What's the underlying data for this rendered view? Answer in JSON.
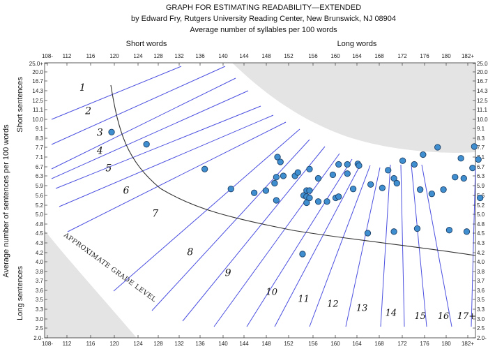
{
  "chart_data": {
    "type": "scatter",
    "title_lines": [
      "GRAPH FOR ESTIMATING READABILITY—EXTENDED",
      "by Edward Fry, Rutgers University Reading Center, New Brunswick, NJ 08904",
      "Average number of syllables per 100 words"
    ],
    "top_labels": {
      "left": "Short words",
      "right": "Long words"
    },
    "ylabel": "Average number of sentences per 100 words",
    "side_labels": {
      "top": "Short sentences",
      "bottom": "Long sentences"
    },
    "x_ticks": [
      "108-",
      "112",
      "116",
      "120",
      "124",
      "128",
      "132",
      "136",
      "140",
      "144",
      "148",
      "152",
      "156",
      "160",
      "164",
      "168",
      "172",
      "176",
      "180",
      "182+"
    ],
    "y_ticks": [
      "25.0+",
      "20.0",
      "16.7",
      "14.3",
      "12.5",
      "11.1",
      "10.0",
      "9.1",
      "8.3",
      "7.7",
      "7.1",
      "6.7",
      "6.3",
      "5.9",
      "5.6",
      "5.2",
      "5.0",
      "4.8",
      "4.5",
      "4.3",
      "4.2",
      "4.0",
      "3.8",
      "3.7",
      "3.6",
      "3.5",
      "3.3",
      "3.0",
      "2.5",
      "2.0-"
    ],
    "xlim": [
      108,
      182
    ],
    "curve_label": "APPROXIMATE GRADE LEVEL",
    "grade_labels": [
      {
        "text": "1",
        "x": 114.5,
        "y": 14.3
      },
      {
        "text": "2",
        "x": 115.5,
        "y": 10.6
      },
      {
        "text": "3",
        "x": 117.5,
        "y": 8.5
      },
      {
        "text": "4",
        "x": 117.5,
        "y": 7.3
      },
      {
        "text": "5",
        "x": 119,
        "y": 6.5
      },
      {
        "text": "6",
        "x": 122,
        "y": 5.65
      },
      {
        "text": "7",
        "x": 127,
        "y": 4.95
      },
      {
        "text": "8",
        "x": 133,
        "y": 4.15
      },
      {
        "text": "9",
        "x": 139.5,
        "y": 3.75
      },
      {
        "text": "10",
        "x": 147,
        "y": 3.55
      },
      {
        "text": "11",
        "x": 152.5,
        "y": 3.45
      },
      {
        "text": "12",
        "x": 157.5,
        "y": 3.35
      },
      {
        "text": "13",
        "x": 162.5,
        "y": 3.25
      },
      {
        "text": "14",
        "x": 167.5,
        "y": 3.1
      },
      {
        "text": "15",
        "x": 172.5,
        "y": 3.0
      },
      {
        "text": "16",
        "x": 176.5,
        "y": 3.0
      },
      {
        "text": "17+",
        "x": 180.5,
        "y": 3.0
      }
    ],
    "points": [
      [
        119.5,
        8.8
      ],
      [
        125.5,
        7.9
      ],
      [
        135.5,
        6.6
      ],
      [
        140,
        5.8
      ],
      [
        144,
        5.68
      ],
      [
        146,
        5.75
      ],
      [
        147.5,
        6.0
      ],
      [
        147.8,
        6.25
      ],
      [
        148,
        7.1
      ],
      [
        148.5,
        6.9
      ],
      [
        149,
        6.3
      ],
      [
        151,
        6.3
      ],
      [
        151.5,
        6.45
      ],
      [
        147.8,
        5.4
      ],
      [
        152.5,
        5.6
      ],
      [
        153,
        5.55
      ],
      [
        153,
        5.75
      ],
      [
        153.5,
        5.75
      ],
      [
        153.5,
        6.6
      ],
      [
        153,
        5.3
      ],
      [
        153.5,
        5.5
      ],
      [
        155,
        6.2
      ],
      [
        155,
        5.35
      ],
      [
        156.5,
        5.35
      ],
      [
        157.5,
        6.35
      ],
      [
        158,
        5.5
      ],
      [
        158.5,
        5.55
      ],
      [
        158.5,
        6.8
      ],
      [
        160,
        6.8
      ],
      [
        160,
        6.4
      ],
      [
        161,
        5.8
      ],
      [
        161.8,
        6.82
      ],
      [
        162,
        6.75
      ],
      [
        163.5,
        4.5
      ],
      [
        164,
        5.95
      ],
      [
        166,
        5.83
      ],
      [
        167,
        6.55
      ],
      [
        168,
        4.55
      ],
      [
        168,
        6.2
      ],
      [
        168.5,
        6.0
      ],
      [
        169.5,
        6.95
      ],
      [
        171.5,
        6.8
      ],
      [
        172,
        4.65
      ],
      [
        172.5,
        5.78
      ],
      [
        173,
        7.25
      ],
      [
        174.5,
        5.65
      ],
      [
        175.5,
        7.7
      ],
      [
        176.5,
        5.78
      ],
      [
        177.5,
        4.6
      ],
      [
        178.5,
        6.25
      ],
      [
        179.5,
        7.05
      ],
      [
        180,
        6.2
      ],
      [
        180.5,
        4.55
      ],
      [
        181.5,
        6.65
      ],
      [
        181.8,
        7.75
      ],
      [
        182.5,
        7.0
      ],
      [
        182.8,
        5.5
      ],
      [
        152.3,
        4.17
      ]
    ]
  }
}
